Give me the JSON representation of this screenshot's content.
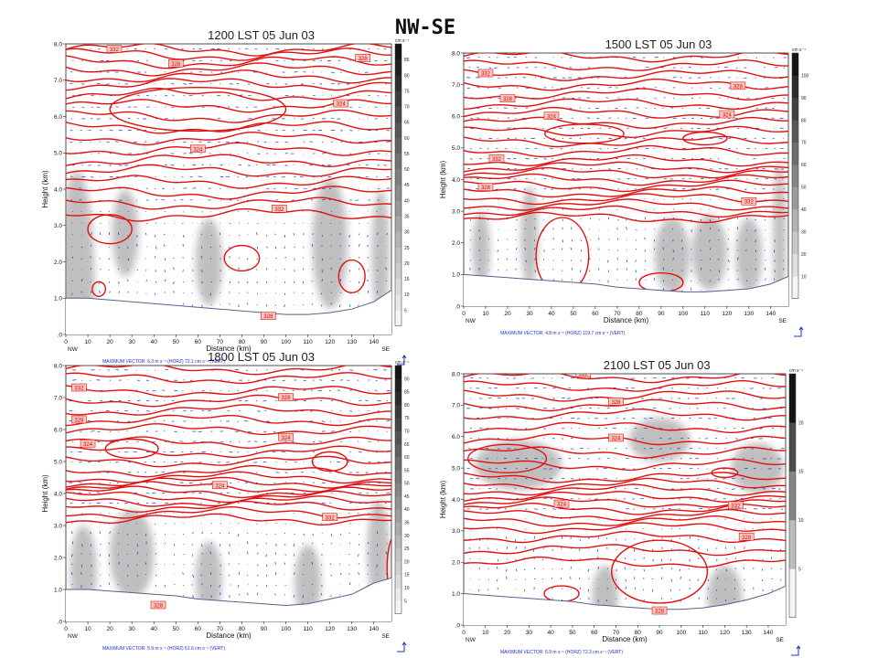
{
  "page_title": "NW-SE",
  "colors": {
    "theta": "#e11010",
    "vector": "#1a2fd0",
    "terrain": "#5a5f8a",
    "label_box": "#f6c9c0"
  },
  "chart_data": [
    {
      "type": "contour",
      "title": "1200 LST 05 Jun 03",
      "xlabel": "Distance (km)",
      "ylabel": "Height (km)",
      "xlim": [
        0,
        148
      ],
      "ylim": [
        0,
        8
      ],
      "xticks": [
        0,
        10,
        20,
        30,
        40,
        50,
        60,
        70,
        80,
        90,
        100,
        110,
        120,
        130,
        140
      ],
      "yticks": [
        ".0",
        "1.0",
        "2.0",
        "3.0",
        "4.0",
        "5.0",
        "6.0",
        "7.0",
        "8.0"
      ],
      "x_end_labels": [
        "NW",
        "SE"
      ],
      "colorbar_unit": "cm s⁻¹",
      "colorbar_ticks": [
        5,
        10,
        15,
        20,
        25,
        30,
        35,
        40,
        45,
        50,
        55,
        60,
        65,
        70,
        75,
        80,
        85
      ],
      "contour_labels": [
        "332",
        "328",
        "328",
        "324",
        "324",
        "332",
        "328"
      ],
      "max_vector": "MAXIMUM VECTOR:   6.3 m s⁻¹ (HORZ)       72.1 cm s⁻¹ (VERT)"
    },
    {
      "type": "contour",
      "title": "1500 LST 05 Jun 03",
      "xlabel": "Distance (km)",
      "ylabel": "Height (km)",
      "xlim": [
        0,
        148
      ],
      "ylim": [
        0,
        8
      ],
      "xticks": [
        0,
        10,
        20,
        30,
        40,
        50,
        60,
        70,
        80,
        90,
        100,
        110,
        120,
        130,
        140
      ],
      "yticks": [
        ".0",
        "1.0",
        "2.0",
        "3.0",
        "4.0",
        "5.0",
        "6.0",
        "7.0",
        "8.0"
      ],
      "x_end_labels": [
        "NW",
        "SE"
      ],
      "colorbar_unit": "cm s⁻¹",
      "colorbar_ticks": [
        10,
        20,
        30,
        40,
        50,
        60,
        70,
        80,
        90,
        100
      ],
      "contour_labels": [
        "332",
        "328",
        "328",
        "324",
        "324",
        "332",
        "328",
        "332"
      ],
      "max_vector": "MAXIMUM VECTOR:   4.8 m s⁻¹ (HORZ)       119.7 cm s⁻¹ (VERT)"
    },
    {
      "type": "contour",
      "title": "1800 LST 05 Jun 03",
      "xlabel": "Distance (km)",
      "ylabel": "Height (km)",
      "xlim": [
        0,
        148
      ],
      "ylim": [
        0,
        8
      ],
      "xticks": [
        0,
        10,
        20,
        30,
        40,
        50,
        60,
        70,
        80,
        90,
        100,
        110,
        120,
        130,
        140
      ],
      "yticks": [
        ".0",
        "1.0",
        "2.0",
        "3.0",
        "4.0",
        "5.0",
        "6.0",
        "7.0",
        "8.0"
      ],
      "x_end_labels": [
        "NW",
        "SE"
      ],
      "colorbar_unit": "cm s⁻¹",
      "colorbar_ticks": [
        5,
        10,
        15,
        20,
        25,
        30,
        35,
        40,
        45,
        50,
        55,
        60,
        65,
        70,
        75,
        80,
        85,
        90
      ],
      "contour_labels": [
        "332",
        "328",
        "328",
        "324",
        "324",
        "324",
        "332",
        "328"
      ],
      "max_vector": "MAXIMUM VECTOR:   5.9 m s⁻¹ (HORZ)       51.6 cm s⁻¹ (VERT)"
    },
    {
      "type": "contour",
      "title": "2100 LST 05 Jun 03",
      "xlabel": "Distance (km)",
      "ylabel": "Height (km)",
      "xlim": [
        0,
        148
      ],
      "ylim": [
        0,
        8
      ],
      "xticks": [
        0,
        10,
        20,
        30,
        40,
        50,
        60,
        70,
        80,
        90,
        100,
        110,
        120,
        130,
        140
      ],
      "yticks": [
        ".0",
        "1.0",
        "2.0",
        "3.0",
        "4.0",
        "5.0",
        "6.0",
        "7.0",
        "8.0"
      ],
      "x_end_labels": [
        "NW",
        "SE"
      ],
      "colorbar_unit": "cm s⁻¹",
      "colorbar_ticks": [
        5,
        10,
        15,
        20
      ],
      "contour_labels": [
        "332",
        "328",
        "324",
        "324",
        "332",
        "328",
        "328"
      ],
      "max_vector": "MAXIMUM VECTOR:   6.9 m s⁻¹ (HORZ)       72.3 cm s⁻¹ (VERT)"
    }
  ]
}
